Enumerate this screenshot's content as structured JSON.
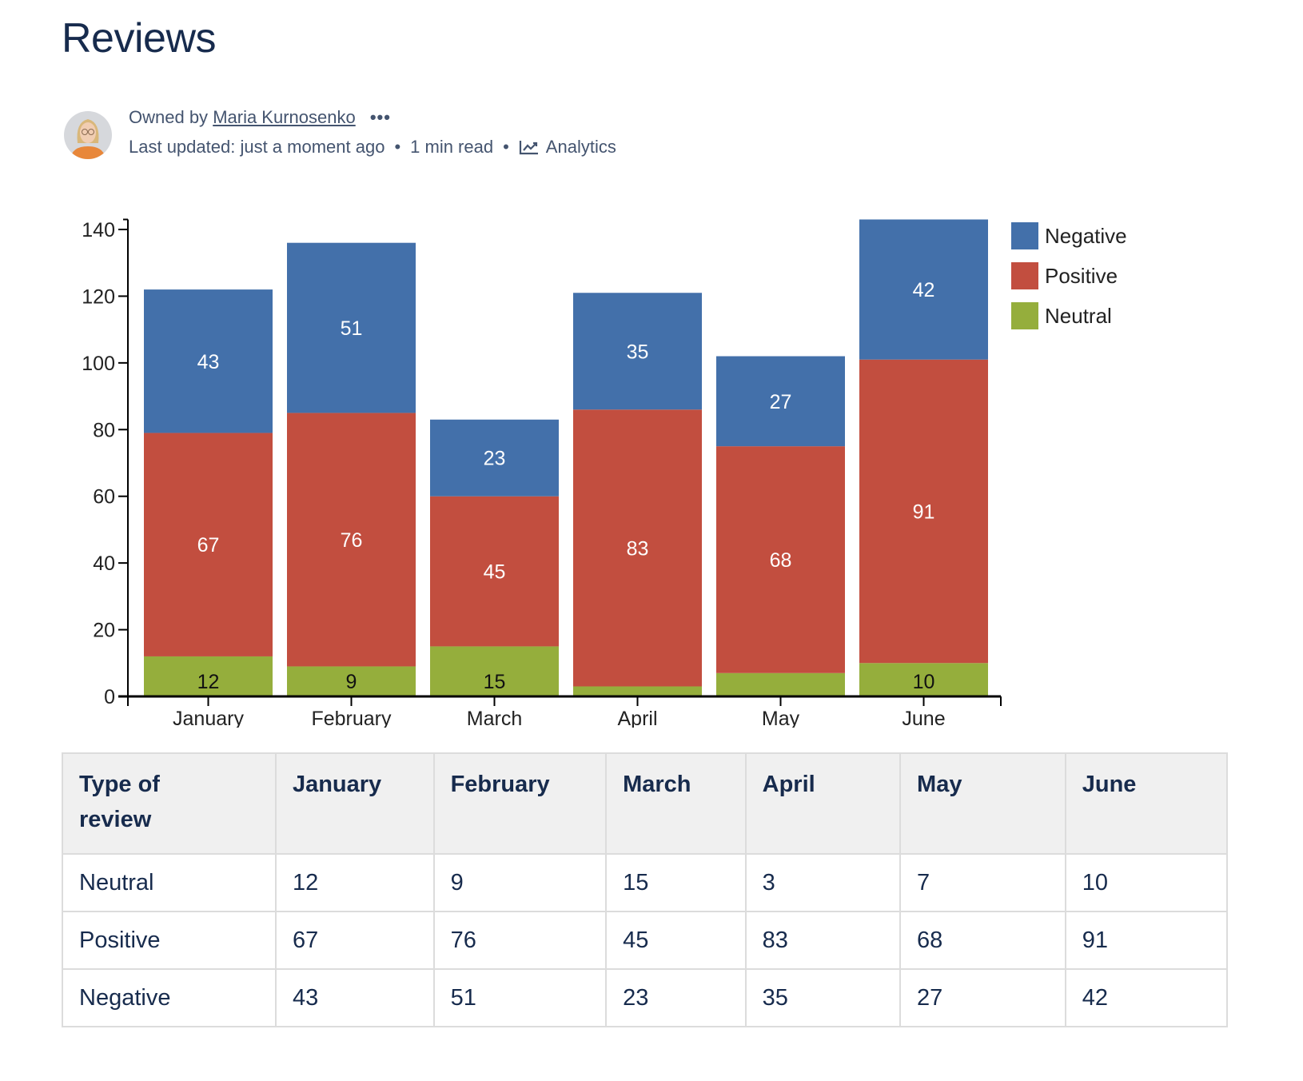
{
  "page": {
    "title": "Reviews"
  },
  "byline": {
    "owned_by": "Owned by",
    "owner": "Maria Kurnosenko",
    "more": "•••",
    "last_updated": "Last updated: just a moment ago",
    "read_time": "1 min read",
    "analytics": "Analytics",
    "separator": "•"
  },
  "colors": {
    "Negative": "#4370aa",
    "Positive": "#c24e3f",
    "Neutral": "#95ae3c"
  },
  "chart_data": {
    "type": "bar",
    "stacked": true,
    "categories": [
      "January",
      "February",
      "March",
      "April",
      "May",
      "June"
    ],
    "series": [
      {
        "name": "Neutral",
        "values": [
          12,
          9,
          15,
          3,
          7,
          10
        ]
      },
      {
        "name": "Positive",
        "values": [
          67,
          76,
          45,
          83,
          68,
          91
        ]
      },
      {
        "name": "Negative",
        "values": [
          43,
          51,
          23,
          35,
          27,
          42
        ]
      }
    ],
    "hidden_labels": {
      "Neutral": [
        "April",
        "May"
      ]
    },
    "yticks": [
      "0",
      "20",
      "40",
      "60",
      "80",
      "100",
      "120",
      "140"
    ],
    "ylim": [
      0,
      143
    ],
    "legend": [
      "Negative",
      "Positive",
      "Neutral"
    ],
    "legend_placement": "top-right",
    "grid": false
  },
  "table": {
    "headers": [
      "Type of review",
      "January",
      "February",
      "March",
      "April",
      "May",
      "June"
    ],
    "rows": [
      [
        "Neutral",
        "12",
        "9",
        "15",
        "3",
        "7",
        "10"
      ],
      [
        "Positive",
        "67",
        "76",
        "45",
        "83",
        "68",
        "91"
      ],
      [
        "Negative",
        "43",
        "51",
        "23",
        "35",
        "27",
        "42"
      ]
    ]
  }
}
